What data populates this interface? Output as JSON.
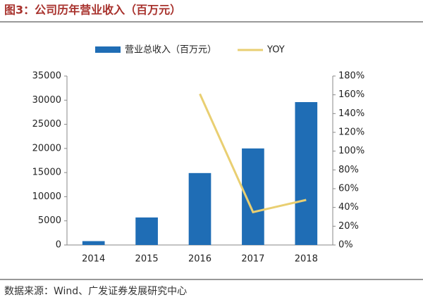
{
  "chart_data": {
    "type": "bar",
    "title": "图3：公司历年营业收入（百万元）",
    "source": "数据来源：Wind、广发证券发展研究中心",
    "categories": [
      "2014",
      "2015",
      "2016",
      "2017",
      "2018"
    ],
    "series": [
      {
        "name": "营业总收入（百万元）",
        "type": "bar",
        "color": "#1f6db5",
        "values": [
          800,
          5700,
          14900,
          20000,
          29600
        ]
      },
      {
        "name": "YOY",
        "type": "line",
        "axis": "y2",
        "color": "#e9cf72",
        "values": [
          null,
          null,
          161,
          35,
          48
        ]
      }
    ],
    "ylim": [
      0,
      35000
    ],
    "yticks": [
      0,
      5000,
      10000,
      15000,
      20000,
      25000,
      30000,
      35000
    ],
    "y2lim": [
      0,
      180
    ],
    "y2ticks": [
      {
        "value": 0,
        "label": "0%"
      },
      {
        "value": 20,
        "label": "20%"
      },
      {
        "value": 40,
        "label": "40%"
      },
      {
        "value": 60,
        "label": "60%"
      },
      {
        "value": 80,
        "label": "80%"
      },
      {
        "value": 100,
        "label": "100%"
      },
      {
        "value": 120,
        "label": "120%"
      },
      {
        "value": 140,
        "label": "140%"
      },
      {
        "value": 160,
        "label": "160%"
      },
      {
        "value": 180,
        "label": "180%"
      }
    ],
    "grid": false
  }
}
